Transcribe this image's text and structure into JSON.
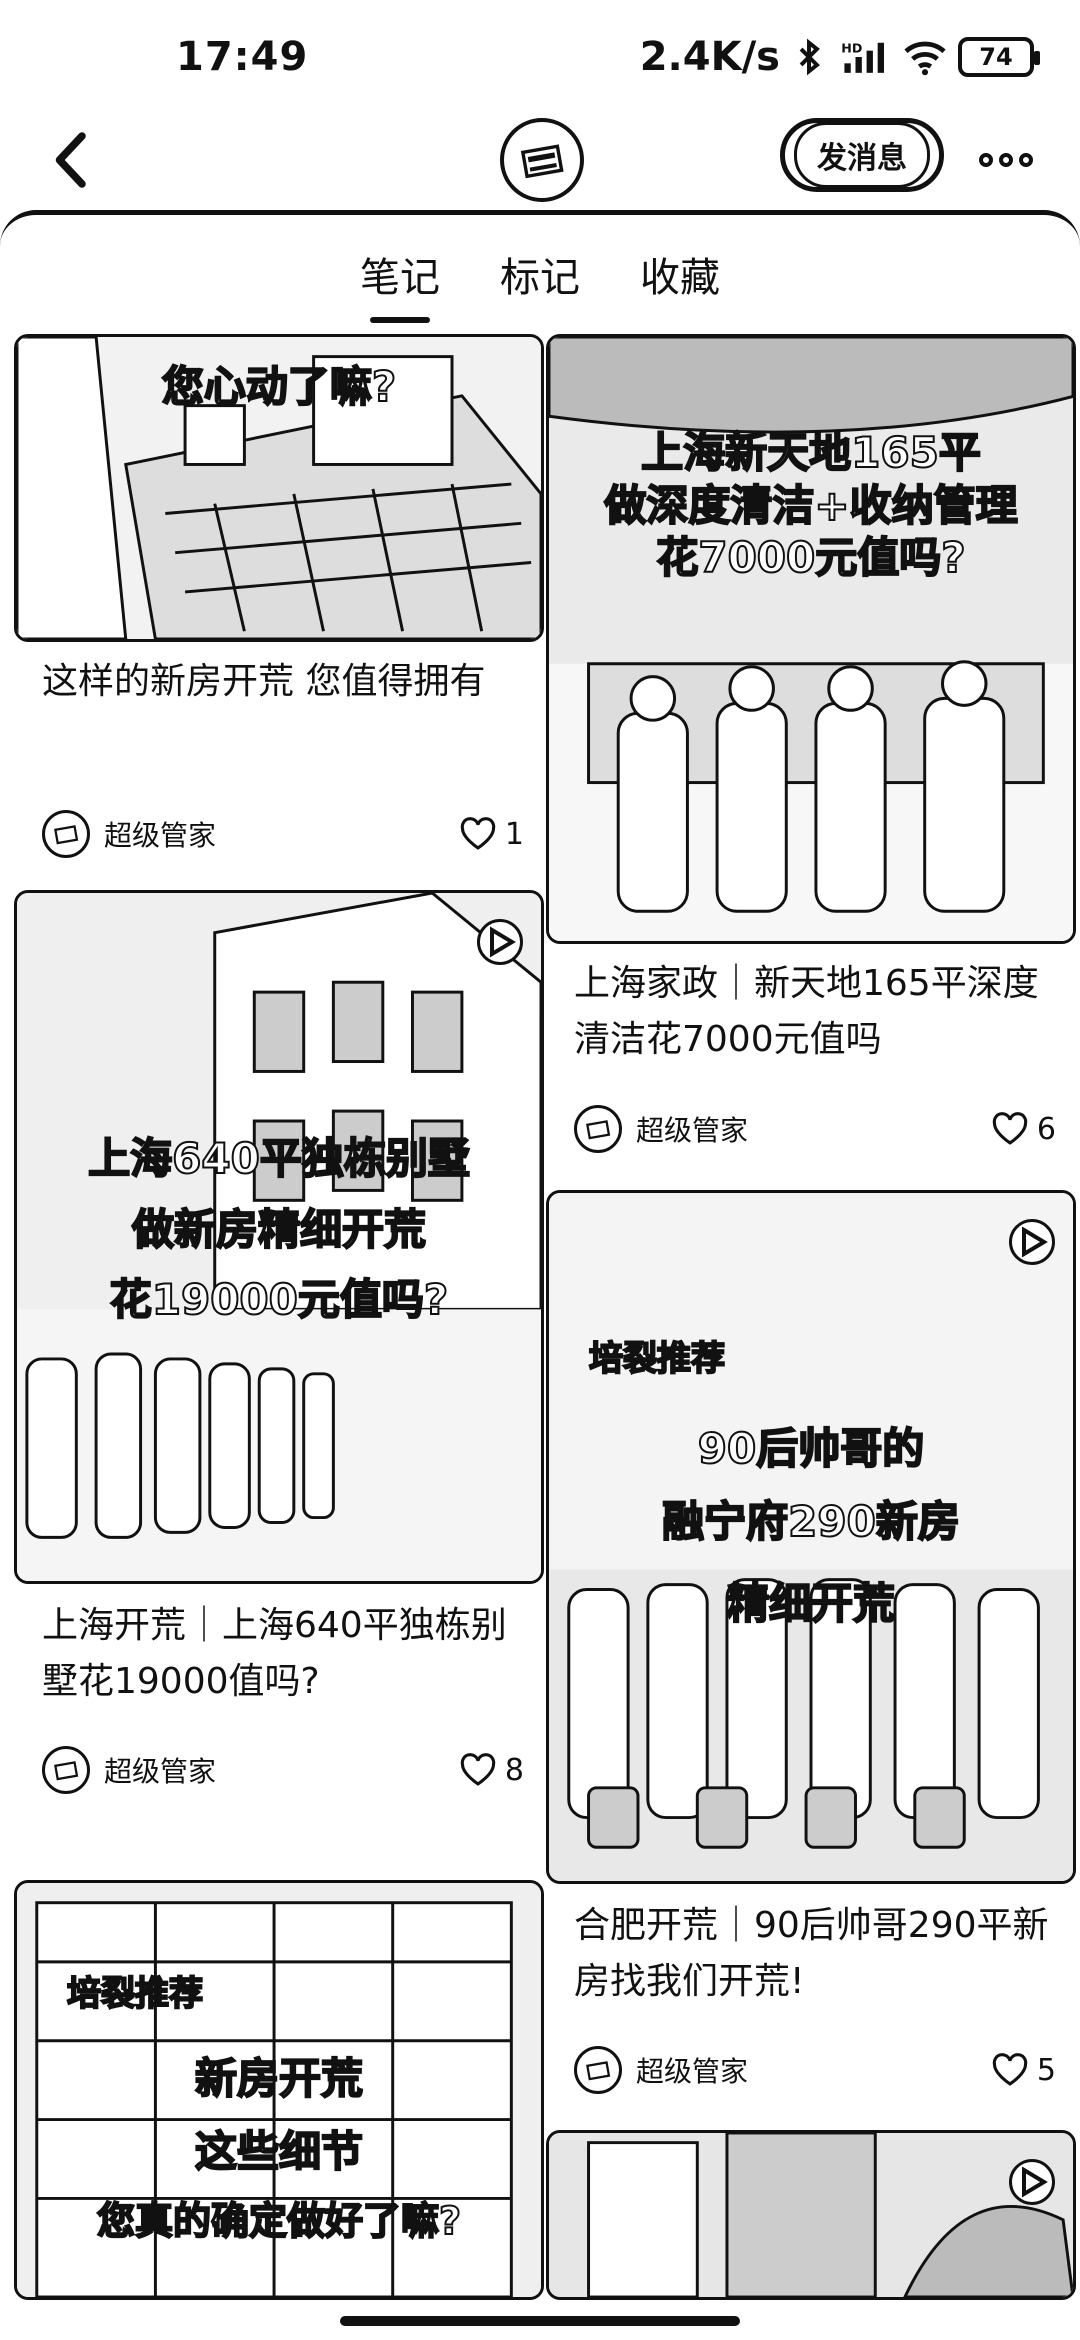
{
  "status_bar": {
    "time": "17:49",
    "speed": "2.4K/s",
    "battery": "74",
    "icons": [
      "bluetooth-icon",
      "signal-icon",
      "wifi-icon",
      "battery-icon"
    ]
  },
  "header": {
    "back_icon": "chevron-left-icon",
    "message_button": "发消息",
    "more_icon": "more-dots-icon"
  },
  "tabs": [
    {
      "label": "笔记",
      "active": true
    },
    {
      "label": "标记",
      "active": false
    },
    {
      "label": "收藏",
      "active": false
    }
  ],
  "cards": [
    {
      "image_text": [
        "您心动了嘛?"
      ],
      "title": "这样的新房开荒 您值得拥有",
      "author": "超级管家",
      "likes": "1"
    },
    {
      "image_text": [
        "上海新天地165平",
        "做深度清洁+收纳管理",
        "花7000元值吗?"
      ],
      "title": "上海家政｜新天地165平深度清洁花7000元值吗",
      "author": "超级管家",
      "likes": "6"
    },
    {
      "image_text": [
        "上海640平独栋别墅",
        "做新房精细开荒",
        "花19000元值吗?"
      ],
      "title": "上海开荒｜上海640平独栋别墅花19000值吗?",
      "author": "超级管家",
      "likes": "8"
    },
    {
      "image_text": [
        "培裂推荐",
        "90后帅哥的",
        "融宁府290新房",
        "精细开荒"
      ],
      "title": "合肥开荒｜90后帅哥290平新房找我们开荒!",
      "author": "超级管家",
      "likes": "5"
    },
    {
      "image_text": [
        "培裂推荐",
        "新房开荒",
        "这些细节",
        "您真的确定做好了嘛?"
      ]
    }
  ]
}
